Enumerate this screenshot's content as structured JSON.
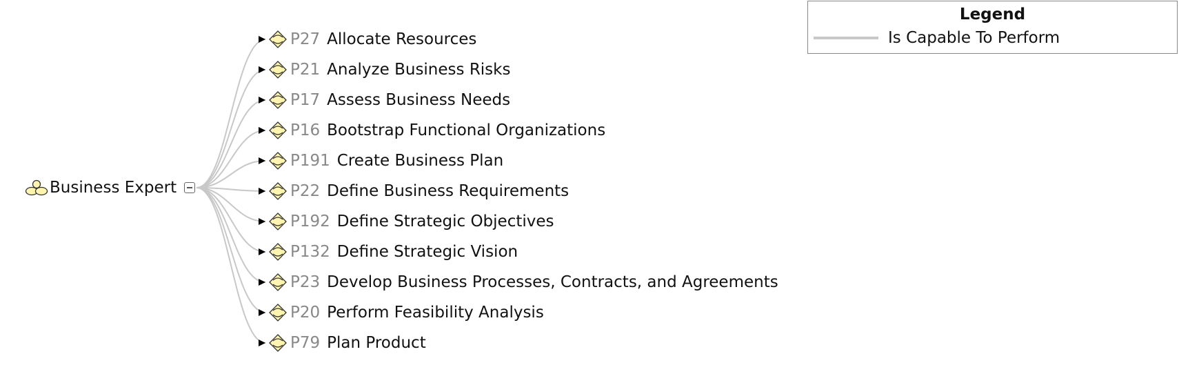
{
  "root": {
    "label": "Business Expert",
    "icon": "role-icon"
  },
  "processes": [
    {
      "id": "P27",
      "name": "Allocate Resources"
    },
    {
      "id": "P21",
      "name": "Analyze Business Risks"
    },
    {
      "id": "P17",
      "name": "Assess Business Needs"
    },
    {
      "id": "P16",
      "name": "Bootstrap Functional Organizations"
    },
    {
      "id": "P191",
      "name": "Create Business Plan"
    },
    {
      "id": "P22",
      "name": "Define Business Requirements"
    },
    {
      "id": "P192",
      "name": "Define Strategic Objectives"
    },
    {
      "id": "P132",
      "name": "Define Strategic Vision"
    },
    {
      "id": "P23",
      "name": "Develop Business Processes, Contracts, and Agreements"
    },
    {
      "id": "P20",
      "name": "Perform Feasibility Analysis"
    },
    {
      "id": "P79",
      "name": "Plan Product"
    }
  ],
  "legend": {
    "title": "Legend",
    "items": [
      {
        "label": "Is Capable To Perform",
        "color": "#c8c8c8"
      }
    ]
  },
  "colors": {
    "edge": "#c8c8c8",
    "arrowhead": "#000000",
    "process_icon_fill": "#fff5b0",
    "process_id_text": "#888888"
  }
}
